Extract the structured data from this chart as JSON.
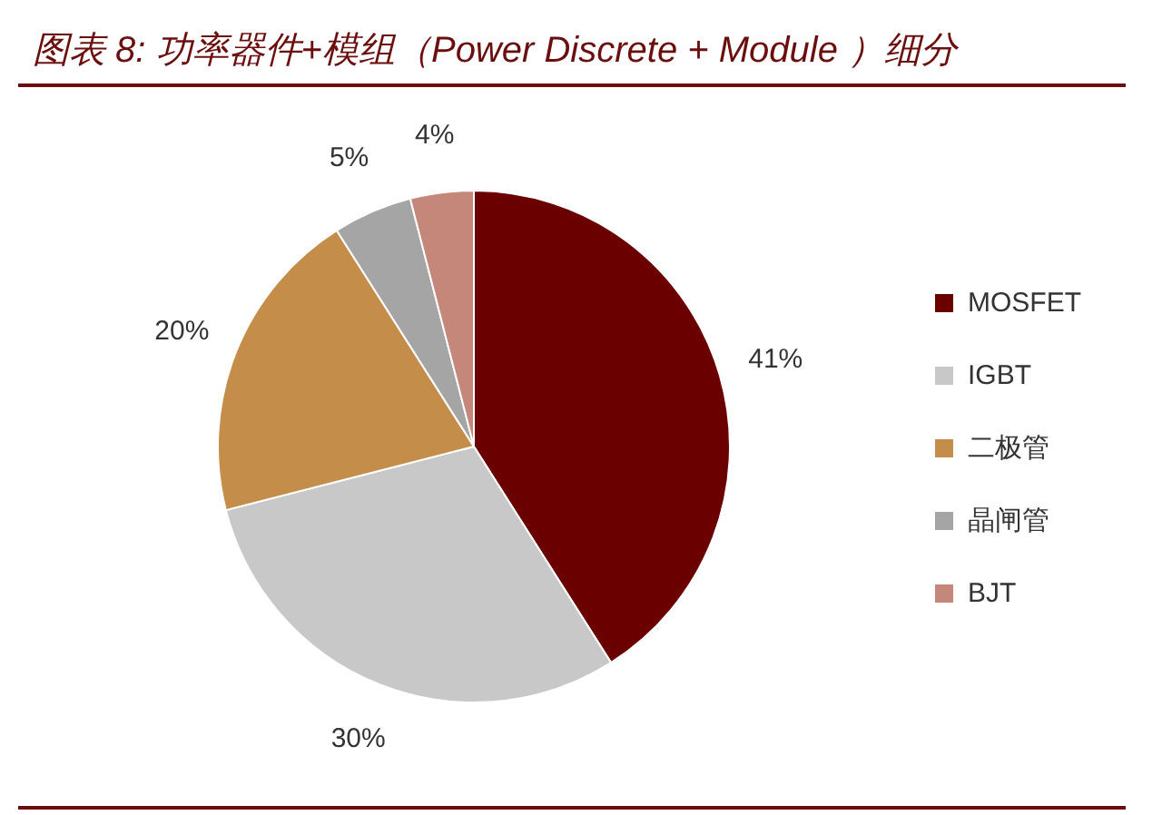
{
  "chart_data": {
    "type": "pie",
    "title": "图表 8:  功率器件+模组（Power Discrete + Module ）细分",
    "categories": [
      "MOSFET",
      "IGBT",
      "二极管",
      "晶闸管",
      "BJT"
    ],
    "values": [
      41,
      30,
      20,
      5,
      4
    ],
    "colors": [
      "#6b0000",
      "#c8c8c8",
      "#c48d4a",
      "#a5a5a5",
      "#c4877a"
    ],
    "value_labels": [
      "41%",
      "30%",
      "20%",
      "5%",
      "4%"
    ],
    "legend": "right"
  }
}
